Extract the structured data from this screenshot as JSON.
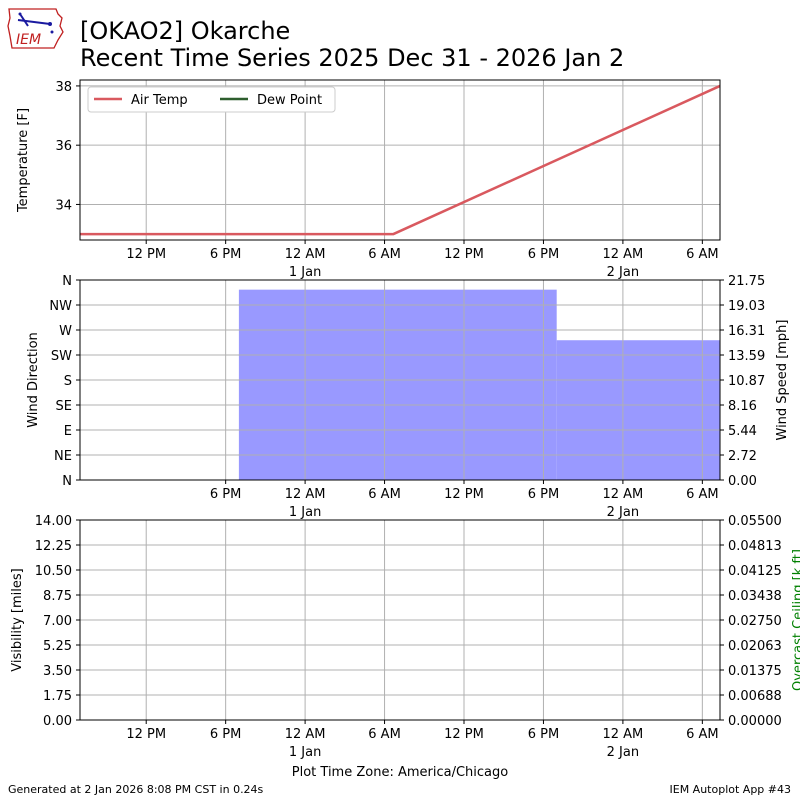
{
  "header": {
    "title_line1": "[OKAO2] Okarche",
    "title_line2": "Recent Time Series 2025 Dec 31 - 2026 Jan 2",
    "logo_text": "IEM"
  },
  "footer": {
    "generated": "Generated at 2 Jan 2026 8:08 PM CST in 0.24s",
    "app": "IEM Autoplot App #43"
  },
  "colors": {
    "air_temp": "#d9595f",
    "dew_point": "#2e5e2e",
    "wind_fill": "#9999ff",
    "ceiling_label": "#008000",
    "grid": "#b0b0b0"
  },
  "chart_data": [
    {
      "type": "line",
      "panel": "temperature",
      "ylabel": "Temperature [F]",
      "ylim": [
        32.8,
        38.2
      ],
      "yticks": [
        34,
        36,
        38
      ],
      "xlim": [
        "2025-12-31T07:00",
        "2026-01-02T07:20"
      ],
      "xticks": [
        "2025-12-31T12:00",
        "2025-12-31T18:00",
        "2026-01-01T00:00",
        "2026-01-01T06:00",
        "2026-01-01T12:00",
        "2026-01-01T18:00",
        "2026-01-02T00:00",
        "2026-01-02T06:00"
      ],
      "xtick_labels": [
        "12 PM",
        "6 PM",
        "12 AM",
        "6 AM",
        "12 PM",
        "6 PM",
        "12 AM",
        "6 AM"
      ],
      "xtick_sublabels": [
        "",
        "",
        "1 Jan",
        "",
        "",
        "",
        "2 Jan",
        ""
      ],
      "grid": true,
      "legend": "top-left",
      "series": [
        {
          "name": "Air Temp",
          "points": [
            {
              "x": "2025-12-31T07:00",
              "y": 33
            },
            {
              "x": "2026-01-01T06:40",
              "y": 33
            },
            {
              "x": "2026-01-02T07:20",
              "y": 38
            }
          ]
        },
        {
          "name": "Dew Point",
          "points": []
        }
      ]
    },
    {
      "type": "area",
      "panel": "wind",
      "ylabel": "Wind Direction",
      "y2label": "Wind Speed [mph]",
      "yticks_left": [
        "N",
        "NE",
        "E",
        "SE",
        "S",
        "SW",
        "W",
        "NW",
        "N"
      ],
      "yticks_right": [
        "0.00",
        "2.72",
        "5.44",
        "8.16",
        "10.87",
        "13.59",
        "16.31",
        "19.03",
        "21.75"
      ],
      "ylim_right": [
        0,
        21.75
      ],
      "xlim": [
        "2025-12-31T07:00",
        "2026-01-02T07:20"
      ],
      "xticks": [
        "2025-12-31T18:00",
        "2026-01-01T00:00",
        "2026-01-01T06:00",
        "2026-01-01T12:00",
        "2026-01-01T18:00",
        "2026-01-02T00:00",
        "2026-01-02T06:00"
      ],
      "xtick_labels": [
        "6 PM",
        "12 AM",
        "6 AM",
        "12 PM",
        "6 PM",
        "12 AM",
        "6 AM"
      ],
      "xtick_sublabels": [
        "",
        "1 Jan",
        "",
        "",
        "",
        "2 Jan",
        ""
      ],
      "grid": true,
      "series": [
        {
          "name": "Wind Speed",
          "steps": [
            {
              "x0": "2025-12-31T19:00",
              "x1": "2026-01-01T19:00",
              "y": 20.7
            },
            {
              "x0": "2026-01-01T19:00",
              "x1": "2026-01-02T07:20",
              "y": 15.2
            }
          ]
        }
      ]
    },
    {
      "type": "line",
      "panel": "visibility",
      "ylabel": "Visibility [miles]",
      "y2label": "Overcast Ceiling [k ft]",
      "yticks_left": [
        "0.00",
        "1.75",
        "3.50",
        "5.25",
        "7.00",
        "8.75",
        "10.50",
        "12.25",
        "14.00"
      ],
      "yticks_right": [
        "0.00000",
        "0.00688",
        "0.01375",
        "0.02063",
        "0.02750",
        "0.03438",
        "0.04125",
        "0.04813",
        "0.05500"
      ],
      "ylim": [
        0,
        14
      ],
      "ylim_right": [
        0,
        0.055
      ],
      "xlim": [
        "2025-12-31T07:00",
        "2026-01-02T07:20"
      ],
      "xticks": [
        "2025-12-31T12:00",
        "2025-12-31T18:00",
        "2026-01-01T00:00",
        "2026-01-01T06:00",
        "2026-01-01T12:00",
        "2026-01-01T18:00",
        "2026-01-02T00:00",
        "2026-01-02T06:00"
      ],
      "xtick_labels": [
        "12 PM",
        "6 PM",
        "12 AM",
        "6 AM",
        "12 PM",
        "6 PM",
        "12 AM",
        "6 AM"
      ],
      "xtick_sublabels": [
        "",
        "",
        "1 Jan",
        "",
        "",
        "",
        "2 Jan",
        ""
      ],
      "xlabel": "Plot Time Zone: America/Chicago",
      "grid": true,
      "series": []
    }
  ]
}
